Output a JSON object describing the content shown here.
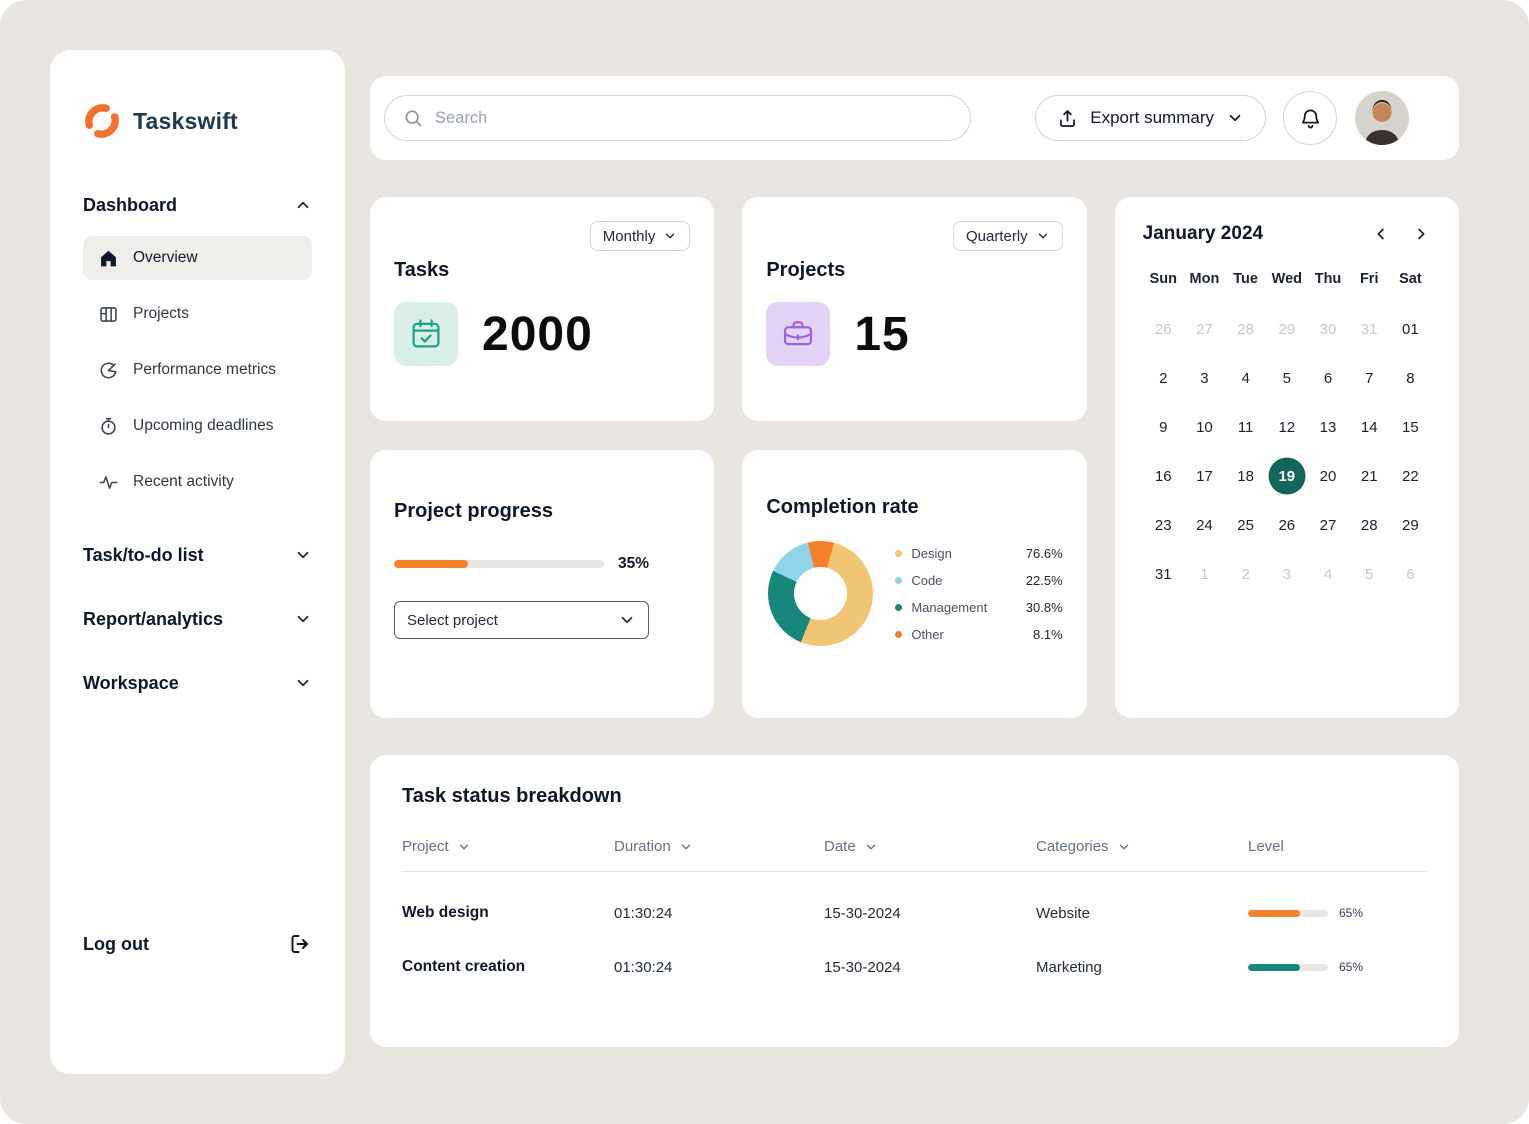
{
  "app": {
    "bg": "#e9e6e2",
    "accent_teal": "#14655a",
    "accent_orange": "#f4812d"
  },
  "sidebar": {
    "logo_text": "Taskswift",
    "sections": {
      "dashboard": "Dashboard",
      "todo": "Task/to-do list",
      "report": "Report/analytics",
      "workspace": "Workspace"
    },
    "items": [
      {
        "label": "Overview",
        "active": true
      },
      {
        "label": "Projects",
        "active": false
      },
      {
        "label": "Performance metrics",
        "active": false
      },
      {
        "label": "Upcoming deadlines",
        "active": false
      },
      {
        "label": "Recent activity",
        "active": false
      }
    ],
    "logout_label": "Log out"
  },
  "topbar": {
    "search_placeholder": "Search",
    "export_label": "Export summary"
  },
  "tasks_card": {
    "title": "Tasks",
    "period": "Monthly",
    "value": "2000"
  },
  "projects_card": {
    "title": "Projects",
    "period": "Quarterly",
    "value": "15"
  },
  "progress_card": {
    "title": "Project progress",
    "percent": 35,
    "percent_label": "35%",
    "select_placeholder": "Select project",
    "bar_color": "#f4812d"
  },
  "completion_card": {
    "title": "Completion rate",
    "legend": [
      {
        "label": "Design",
        "value": "76.6%",
        "color": "#f0c674"
      },
      {
        "label": "Code",
        "value": "22.5%",
        "color": "#8fd3e8"
      },
      {
        "label": "Management",
        "value": "30.8%",
        "color": "#17877b"
      },
      {
        "label": "Other",
        "value": "8.1%",
        "color": "#f4812d"
      }
    ],
    "donut": {
      "from_deg": -14,
      "segments": [
        {
          "name": "Other",
          "color": "#f4812d",
          "pct": 8
        },
        {
          "name": "Design",
          "color": "#f0c674",
          "pct": 52
        },
        {
          "name": "Management",
          "color": "#17877b",
          "pct": 26
        },
        {
          "name": "Code",
          "color": "#8fd3e8",
          "pct": 14
        }
      ]
    }
  },
  "calendar": {
    "title": "January 2024",
    "weekdays": [
      "Sun",
      "Mon",
      "Tue",
      "Wed",
      "Thu",
      "Fri",
      "Sat"
    ],
    "days": [
      {
        "d": "26",
        "muted": true
      },
      {
        "d": "27",
        "muted": true
      },
      {
        "d": "28",
        "muted": true
      },
      {
        "d": "29",
        "muted": true
      },
      {
        "d": "30",
        "muted": true
      },
      {
        "d": "31",
        "muted": true
      },
      {
        "d": "01",
        "muted": false
      },
      {
        "d": "2"
      },
      {
        "d": "3"
      },
      {
        "d": "4"
      },
      {
        "d": "5"
      },
      {
        "d": "6"
      },
      {
        "d": "7"
      },
      {
        "d": "8"
      },
      {
        "d": "9"
      },
      {
        "d": "10"
      },
      {
        "d": "11"
      },
      {
        "d": "12"
      },
      {
        "d": "13"
      },
      {
        "d": "14"
      },
      {
        "d": "15"
      },
      {
        "d": "16"
      },
      {
        "d": "17"
      },
      {
        "d": "18"
      },
      {
        "d": "19",
        "selected": true
      },
      {
        "d": "20"
      },
      {
        "d": "21"
      },
      {
        "d": "22"
      },
      {
        "d": "23"
      },
      {
        "d": "24"
      },
      {
        "d": "25"
      },
      {
        "d": "26"
      },
      {
        "d": "27"
      },
      {
        "d": "28"
      },
      {
        "d": "29"
      },
      {
        "d": "31"
      },
      {
        "d": "1",
        "muted": true
      },
      {
        "d": "2",
        "muted": true
      },
      {
        "d": "3",
        "muted": true
      },
      {
        "d": "4",
        "muted": true
      },
      {
        "d": "5",
        "muted": true
      },
      {
        "d": "6",
        "muted": true
      }
    ]
  },
  "table": {
    "title": "Task status breakdown",
    "columns": [
      "Project",
      "Duration",
      "Date",
      "Categories",
      "Level"
    ],
    "rows": [
      {
        "project": "Web design",
        "duration": "01:30:24",
        "date": "15-30-2024",
        "category": "Website",
        "level": 65,
        "level_label": "65%",
        "color": "#f4812d"
      },
      {
        "project": "Content creation",
        "duration": "01:30:24",
        "date": "15-30-2024",
        "category": "Marketing",
        "level": 65,
        "level_label": "65%",
        "color": "#17877b"
      }
    ]
  }
}
